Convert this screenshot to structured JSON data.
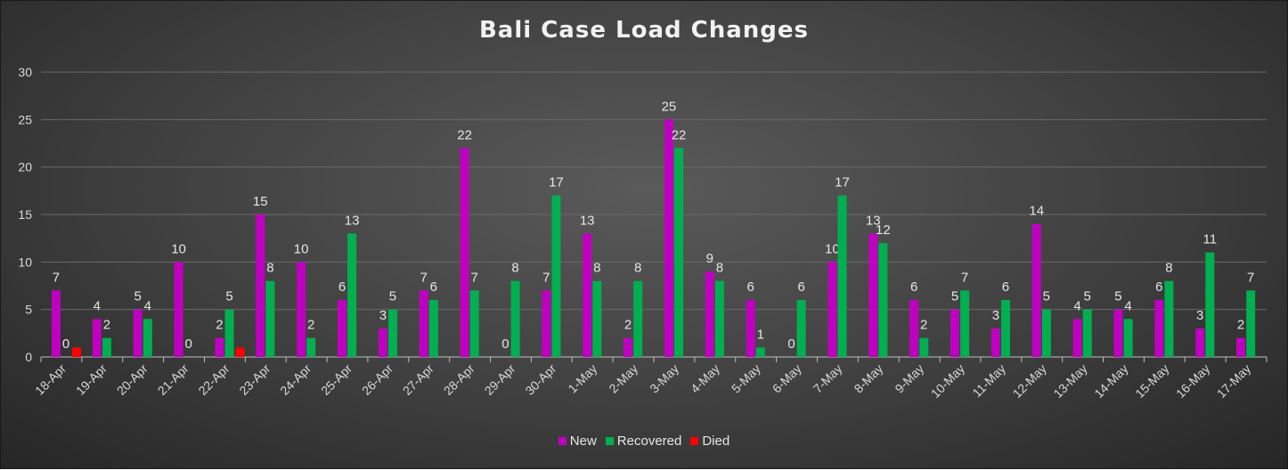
{
  "chart_data": {
    "type": "bar",
    "title": "Bali Case Load Changes",
    "xlabel": "",
    "ylabel": "",
    "ylim": [
      0,
      30
    ],
    "yticks": [
      0,
      5,
      10,
      15,
      20,
      25,
      30
    ],
    "grid": true,
    "legend_position": "bottom",
    "categories": [
      "18-Apr",
      "19-Apr",
      "20-Apr",
      "21-Apr",
      "22-Apr",
      "23-Apr",
      "24-Apr",
      "25-Apr",
      "26-Apr",
      "27-Apr",
      "28-Apr",
      "29-Apr",
      "30-Apr",
      "1-May",
      "2-May",
      "3-May",
      "4-May",
      "5-May",
      "6-May",
      "7-May",
      "8-May",
      "9-May",
      "10-May",
      "11-May",
      "12-May",
      "13-May",
      "14-May",
      "15-May",
      "16-May",
      "17-May"
    ],
    "series": [
      {
        "name": "New",
        "color": "#c000c0",
        "values": [
          7,
          4,
          5,
          10,
          2,
          15,
          10,
          6,
          3,
          7,
          22,
          0,
          7,
          13,
          2,
          25,
          9,
          6,
          0,
          10,
          13,
          6,
          5,
          3,
          14,
          4,
          5,
          6,
          3,
          2
        ],
        "labels": [
          "7",
          "4",
          "5",
          "10",
          "2",
          "15",
          "10",
          "6",
          "3",
          "7",
          "22",
          "0",
          "7",
          "13",
          "2",
          "25",
          "9",
          "6",
          "0",
          "10",
          "13",
          "6",
          "5",
          "3",
          "14",
          "4",
          "5",
          "6",
          "3",
          "2"
        ]
      },
      {
        "name": "Recovered",
        "color": "#00b050",
        "values": [
          null,
          2,
          4,
          0,
          5,
          8,
          2,
          13,
          5,
          6,
          7,
          8,
          17,
          8,
          8,
          22,
          8,
          1,
          6,
          17,
          12,
          2,
          7,
          6,
          5,
          5,
          4,
          8,
          11,
          7
        ],
        "labels": [
          "0",
          "2",
          "4",
          "0",
          "5",
          "8",
          "2",
          "13",
          "5",
          "6",
          "7",
          "8",
          "17",
          "8",
          "8",
          "22",
          "8",
          "1",
          "6",
          "17",
          "12",
          "2",
          "7",
          "6",
          "5",
          "5",
          "4",
          "8",
          "11",
          "7"
        ]
      },
      {
        "name": "Died",
        "color": "#ff0000",
        "values": [
          1,
          null,
          null,
          null,
          1,
          null,
          null,
          null,
          null,
          null,
          null,
          null,
          null,
          null,
          null,
          null,
          null,
          null,
          null,
          null,
          null,
          null,
          null,
          null,
          null,
          null,
          null,
          null,
          null,
          null
        ],
        "labels": []
      }
    ]
  }
}
